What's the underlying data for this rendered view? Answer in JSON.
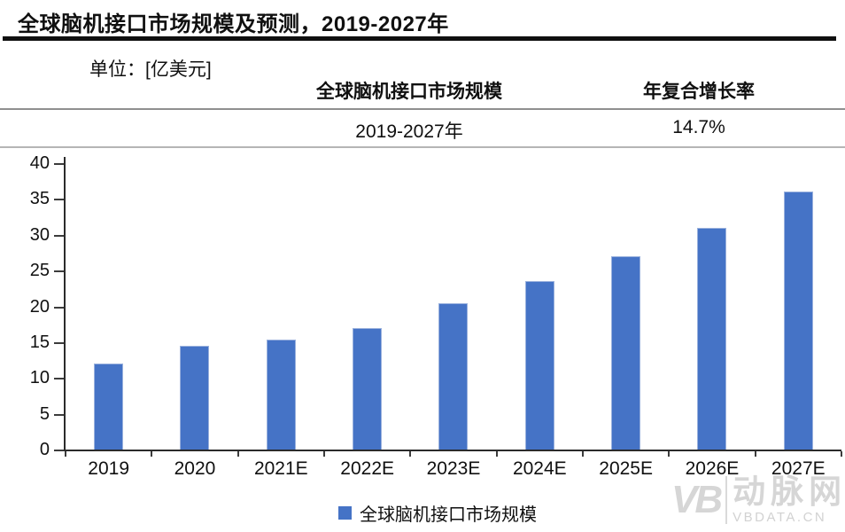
{
  "page": {
    "title": "全球脑机接口市场规模及预测，2019-2027年"
  },
  "info_table": {
    "unit_label": "单位：[亿美元]",
    "col1_header": "全球脑机接口市场规模",
    "col2_header": "年复合增长率",
    "col1_value": "2019-2027年",
    "col2_value": "14.7%"
  },
  "chart_data": {
    "type": "bar",
    "title": "全球脑机接口市场规模及预测，2019-2027年",
    "unit": "亿美元",
    "categories": [
      "2019",
      "2020",
      "2021E",
      "2022E",
      "2023E",
      "2024E",
      "2025E",
      "2026E",
      "2027E"
    ],
    "values": [
      12.0,
      14.5,
      15.4,
      17.0,
      20.4,
      23.5,
      27.0,
      31.0,
      36.0
    ],
    "series_name": "全球脑机接口市场规模",
    "cagr": "14.7%",
    "xlabel": "",
    "ylabel": "",
    "ylim": [
      0,
      40
    ],
    "yticks": [
      0,
      5,
      10,
      15,
      20,
      25,
      30,
      35,
      40
    ],
    "grid": false,
    "legend_position": "bottom",
    "bar_color": "#4573c6",
    "bar_border_color": "#9ab1dd"
  },
  "legend": {
    "label": "全球脑机接口市场规模",
    "swatch_color": "#4573c6"
  },
  "watermark": {
    "monogram": "VB",
    "name": "动脉网",
    "domain": "VBDATA.CN"
  },
  "colors": {
    "title_text": "#101010",
    "title_rule": "#101010",
    "table_rule_top": "#8f8f8f",
    "table_rule_bottom": "#b5b5b5",
    "axis": "#2b2b2b",
    "background": "#ffffff",
    "watermark_gray": "#d6d6d6"
  }
}
